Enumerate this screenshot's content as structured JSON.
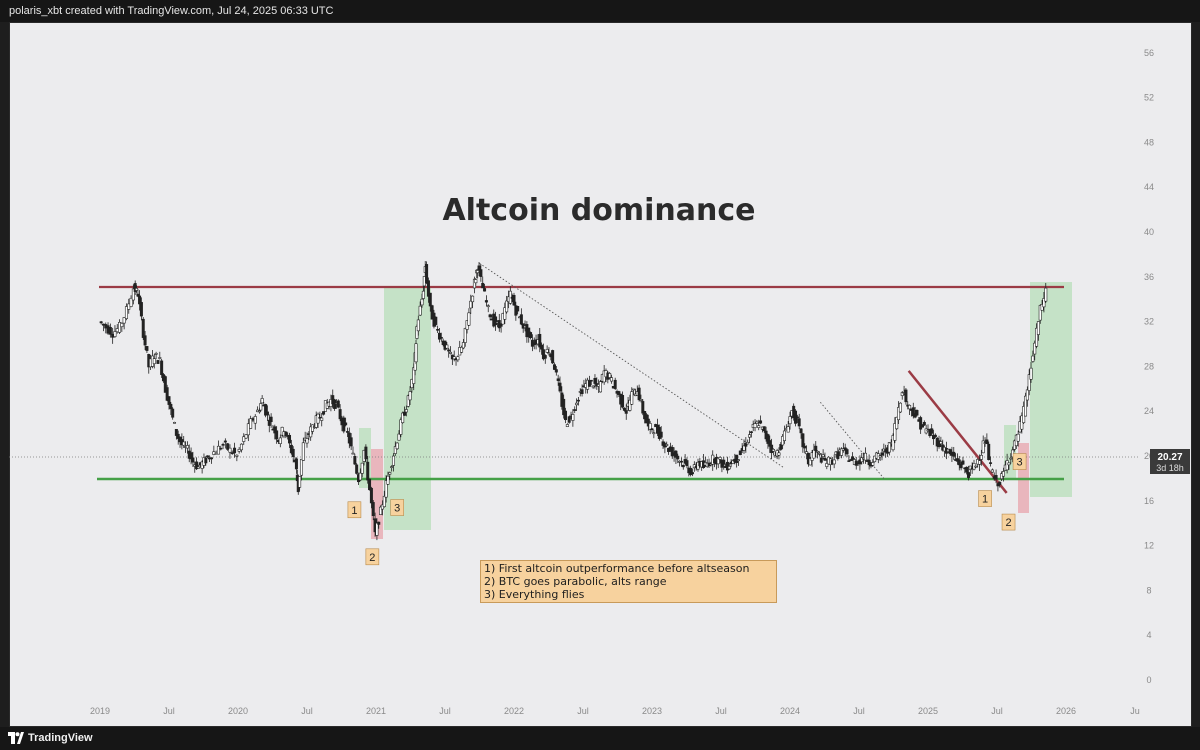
{
  "header": {
    "attribution": "polaris_xbt created with TradingView.com, Jul 24, 2025 06:33 UTC"
  },
  "footer": {
    "brand": "TradingView",
    "logo_icon": "tradingview-logo-icon"
  },
  "colors": {
    "background": "#ececee",
    "resistance": "#9b3b45",
    "support": "#45a047",
    "green_zone": "#a6dba8",
    "red_zone": "#e8a0a8",
    "downtrend": "#9b3b45",
    "marker_bg": "#f7d29e",
    "price_label_bg": "#3a3a3a"
  },
  "chart_data": {
    "type": "candlestick",
    "title": "Altcoin dominance",
    "y_axis": {
      "ticks": [
        0,
        4,
        8,
        12,
        16,
        20,
        24,
        28,
        32,
        36,
        40,
        44,
        48,
        52,
        56
      ],
      "ylim": [
        0,
        58
      ],
      "position": "right"
    },
    "x_axis": {
      "tick_labels": [
        "2019",
        "Jul",
        "2020",
        "Jul",
        "2021",
        "Jul",
        "2022",
        "Jul",
        "2023",
        "Jul",
        "2024",
        "Jul",
        "2025",
        "Jul",
        "2026",
        "Ju"
      ],
      "tick_dates": [
        2019.0,
        2019.5,
        2020.0,
        2020.5,
        2021.0,
        2021.5,
        2022.0,
        2022.5,
        2023.0,
        2023.5,
        2024.0,
        2024.5,
        2025.0,
        2025.5,
        2026.0,
        2026.5
      ]
    },
    "grid": false,
    "current_price": {
      "value": "20.27",
      "countdown": "3d 18h"
    },
    "series": [
      {
        "type": "candlestick",
        "interval": "weekly",
        "points": [
          [
            2019.0,
            32.0
          ],
          [
            2019.05,
            31.5
          ],
          [
            2019.1,
            31.0
          ],
          [
            2019.15,
            31.5
          ],
          [
            2019.2,
            33.0
          ],
          [
            2019.25,
            35.0
          ],
          [
            2019.28,
            34.5
          ],
          [
            2019.32,
            31.0
          ],
          [
            2019.36,
            28.0
          ],
          [
            2019.4,
            29.0
          ],
          [
            2019.44,
            28.5
          ],
          [
            2019.48,
            26.0
          ],
          [
            2019.52,
            24.0
          ],
          [
            2019.56,
            22.0
          ],
          [
            2019.6,
            21.0
          ],
          [
            2019.64,
            20.5
          ],
          [
            2019.68,
            19.5
          ],
          [
            2019.72,
            19.0
          ],
          [
            2019.76,
            19.5
          ],
          [
            2019.8,
            20.0
          ],
          [
            2019.85,
            20.5
          ],
          [
            2019.9,
            21.0
          ],
          [
            2019.95,
            20.5
          ],
          [
            2020.0,
            20.0
          ],
          [
            2020.05,
            21.5
          ],
          [
            2020.1,
            23.0
          ],
          [
            2020.15,
            24.0
          ],
          [
            2020.18,
            25.0
          ],
          [
            2020.22,
            23.5
          ],
          [
            2020.26,
            22.5
          ],
          [
            2020.3,
            21.5
          ],
          [
            2020.34,
            22.5
          ],
          [
            2020.38,
            21.0
          ],
          [
            2020.42,
            19.5
          ],
          [
            2020.44,
            17.0
          ],
          [
            2020.48,
            21.0
          ],
          [
            2020.52,
            22.0
          ],
          [
            2020.56,
            23.0
          ],
          [
            2020.6,
            23.5
          ],
          [
            2020.64,
            24.5
          ],
          [
            2020.68,
            25.0
          ],
          [
            2020.72,
            24.5
          ],
          [
            2020.76,
            23.0
          ],
          [
            2020.8,
            22.0
          ],
          [
            2020.84,
            20.0
          ],
          [
            2020.88,
            18.0
          ],
          [
            2020.92,
            20.5
          ],
          [
            2020.96,
            17.0
          ],
          [
            2021.0,
            13.0
          ],
          [
            2021.04,
            15.0
          ],
          [
            2021.08,
            17.5
          ],
          [
            2021.12,
            19.5
          ],
          [
            2021.16,
            21.5
          ],
          [
            2021.2,
            23.5
          ],
          [
            2021.24,
            25.0
          ],
          [
            2021.28,
            27.5
          ],
          [
            2021.3,
            31.5
          ],
          [
            2021.34,
            34.0
          ],
          [
            2021.36,
            37.0
          ],
          [
            2021.4,
            33.0
          ],
          [
            2021.44,
            31.5
          ],
          [
            2021.48,
            30.5
          ],
          [
            2021.52,
            29.5
          ],
          [
            2021.56,
            28.5
          ],
          [
            2021.6,
            29.0
          ],
          [
            2021.64,
            30.0
          ],
          [
            2021.68,
            33.0
          ],
          [
            2021.72,
            35.5
          ],
          [
            2021.74,
            37.0
          ],
          [
            2021.78,
            35.0
          ],
          [
            2021.82,
            33.0
          ],
          [
            2021.86,
            32.0
          ],
          [
            2021.9,
            31.5
          ],
          [
            2021.94,
            33.0
          ],
          [
            2021.98,
            34.5
          ],
          [
            2022.02,
            33.0
          ],
          [
            2022.06,
            32.0
          ],
          [
            2022.1,
            31.0
          ],
          [
            2022.14,
            30.0
          ],
          [
            2022.18,
            30.5
          ],
          [
            2022.22,
            29.0
          ],
          [
            2022.26,
            29.5
          ],
          [
            2022.3,
            28.0
          ],
          [
            2022.34,
            25.5
          ],
          [
            2022.38,
            23.0
          ],
          [
            2022.42,
            23.5
          ],
          [
            2022.46,
            25.0
          ],
          [
            2022.5,
            26.0
          ],
          [
            2022.54,
            26.5
          ],
          [
            2022.58,
            26.5
          ],
          [
            2022.62,
            26.0
          ],
          [
            2022.66,
            27.5
          ],
          [
            2022.7,
            27.0
          ],
          [
            2022.74,
            26.0
          ],
          [
            2022.78,
            25.0
          ],
          [
            2022.82,
            24.0
          ],
          [
            2022.86,
            25.5
          ],
          [
            2022.9,
            26.0
          ],
          [
            2022.94,
            24.0
          ],
          [
            2022.98,
            22.5
          ],
          [
            2023.02,
            22.5
          ],
          [
            2023.06,
            22.0
          ],
          [
            2023.1,
            21.0
          ],
          [
            2023.14,
            20.5
          ],
          [
            2023.18,
            20.0
          ],
          [
            2023.22,
            19.5
          ],
          [
            2023.26,
            19.0
          ],
          [
            2023.3,
            18.5
          ],
          [
            2023.34,
            19.5
          ],
          [
            2023.38,
            19.0
          ],
          [
            2023.42,
            19.5
          ],
          [
            2023.46,
            19.8
          ],
          [
            2023.5,
            19.5
          ],
          [
            2023.54,
            19.0
          ],
          [
            2023.58,
            19.5
          ],
          [
            2023.62,
            19.8
          ],
          [
            2023.66,
            20.5
          ],
          [
            2023.7,
            21.5
          ],
          [
            2023.74,
            22.5
          ],
          [
            2023.78,
            23.0
          ],
          [
            2023.82,
            22.0
          ],
          [
            2023.86,
            21.0
          ],
          [
            2023.9,
            20.0
          ],
          [
            2023.94,
            21.0
          ],
          [
            2023.98,
            22.5
          ],
          [
            2024.02,
            24.0
          ],
          [
            2024.06,
            23.0
          ],
          [
            2024.1,
            21.0
          ],
          [
            2024.14,
            19.5
          ],
          [
            2024.18,
            20.5
          ],
          [
            2024.22,
            20.0
          ],
          [
            2024.26,
            19.5
          ],
          [
            2024.3,
            19.5
          ],
          [
            2024.34,
            20.0
          ],
          [
            2024.38,
            20.5
          ],
          [
            2024.42,
            20.0
          ],
          [
            2024.46,
            19.5
          ],
          [
            2024.5,
            19.5
          ],
          [
            2024.54,
            20.0
          ],
          [
            2024.58,
            19.5
          ],
          [
            2024.62,
            19.8
          ],
          [
            2024.66,
            20.0
          ],
          [
            2024.7,
            20.5
          ],
          [
            2024.74,
            21.0
          ],
          [
            2024.78,
            23.5
          ],
          [
            2024.82,
            26.0
          ],
          [
            2024.86,
            24.5
          ],
          [
            2024.9,
            24.0
          ],
          [
            2024.94,
            23.0
          ],
          [
            2024.98,
            22.5
          ],
          [
            2025.02,
            22.0
          ],
          [
            2025.06,
            21.5
          ],
          [
            2025.1,
            21.0
          ],
          [
            2025.14,
            20.5
          ],
          [
            2025.18,
            20.0
          ],
          [
            2025.22,
            19.5
          ],
          [
            2025.26,
            19.0
          ],
          [
            2025.3,
            18.5
          ],
          [
            2025.34,
            19.0
          ],
          [
            2025.38,
            20.0
          ],
          [
            2025.42,
            21.5
          ],
          [
            2025.46,
            19.0
          ],
          [
            2025.5,
            17.5
          ],
          [
            2025.54,
            18.0
          ],
          [
            2025.58,
            19.5
          ],
          [
            2025.62,
            20.5
          ],
          [
            2025.66,
            22.0
          ],
          [
            2025.7,
            24.0
          ],
          [
            2025.74,
            27.0
          ],
          [
            2025.78,
            30.0
          ],
          [
            2025.82,
            33.0
          ],
          [
            2025.86,
            34.8
          ]
        ]
      }
    ],
    "annotations": {
      "resistance_level": 35.6,
      "support_level": 18.1,
      "diagonal_trendlines": [
        {
          "style": "dotted",
          "from": [
            2021.75,
            37.2
          ],
          "to": [
            2023.95,
            19.0
          ]
        },
        {
          "style": "dotted",
          "from": [
            2024.22,
            24.8
          ],
          "to": [
            2024.68,
            18.0
          ]
        },
        {
          "style": "solid",
          "from": [
            2024.86,
            27.6
          ],
          "to": [
            2025.57,
            16.7
          ]
        }
      ],
      "cycle_markers": [
        {
          "label": "1",
          "x": 2020.84,
          "y": 15.2
        },
        {
          "label": "2",
          "x": 2020.97,
          "y": 11.0
        },
        {
          "label": "3",
          "x": 2021.15,
          "y": 15.4
        },
        {
          "label": "1",
          "x": 2025.41,
          "y": 16.2
        },
        {
          "label": "2",
          "x": 2025.58,
          "y": 14.1
        },
        {
          "label": "3",
          "x": 2025.66,
          "y": 19.5
        }
      ],
      "legend_lines": [
        "1) First altcoin outperformance before altseason",
        "2) BTC goes parabolic, alts range",
        "3) Everything flies"
      ]
    }
  }
}
